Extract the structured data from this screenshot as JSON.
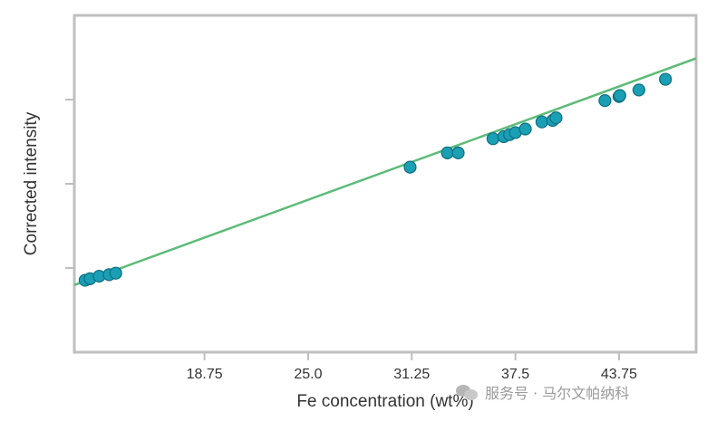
{
  "chart_data": {
    "type": "scatter",
    "title": "",
    "xlabel": "Fe concentration  (wt%)",
    "ylabel": "Corrected intensity",
    "xlim": [
      10.9,
      48.4
    ],
    "ylim": [
      0,
      1
    ],
    "x_ticks": [
      18.75,
      25.0,
      31.25,
      37.5,
      43.75
    ],
    "x_tick_labels": [
      "18.75",
      "25.0",
      "31.25",
      "37.5",
      "43.75"
    ],
    "y_tick_count": 3,
    "grid": false,
    "legend": "none",
    "trend_line": {
      "x": [
        10.9,
        48.4
      ],
      "y": [
        0.1993,
        0.8725
      ]
    },
    "x": [
      11.55,
      11.85,
      12.4,
      13.0,
      13.4,
      31.15,
      33.4,
      34.05,
      36.15,
      36.8,
      37.15,
      37.5,
      38.1,
      39.1,
      39.75,
      39.95,
      42.9,
      43.75,
      43.8,
      44.95,
      46.55
    ],
    "y": [
      0.2136,
      0.2181,
      0.2257,
      0.2302,
      0.2347,
      0.5494,
      0.5917,
      0.5917,
      0.6339,
      0.64,
      0.646,
      0.652,
      0.6626,
      0.6837,
      0.6882,
      0.6958,
      0.747,
      0.7591,
      0.7621,
      0.7786,
      0.8103
    ],
    "colors": {
      "points": "#1a9fb5",
      "point_edge": "#0d6f80",
      "line": "#5dbb78",
      "axes": "#bfbfbf",
      "text": "#333333"
    }
  },
  "watermark": {
    "text": "服务号 · 马尔文帕纳科",
    "icon": "wechat-icon"
  }
}
